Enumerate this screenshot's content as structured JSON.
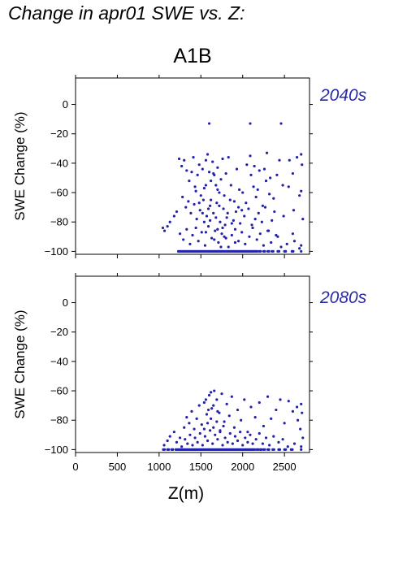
{
  "header": {
    "title": "Change in apr01 SWE vs. Z:",
    "scenario": "A1B"
  },
  "colors": {
    "points": "#2222aa",
    "period_label": "#2a2aa8",
    "axes": "#000000"
  },
  "chart_data": [
    {
      "type": "scatter",
      "panel_label": "2040s",
      "xlabel": "Z(m)",
      "ylabel": "SWE Change (%)",
      "xlim": [
        0,
        2800
      ],
      "ylim": [
        -102,
        18
      ],
      "yticks": [
        0,
        -20,
        -40,
        -60,
        -80,
        -100
      ],
      "xticks": [
        0,
        500,
        1000,
        1500,
        2000,
        2500
      ],
      "show_x_ticklabels": false,
      "grid": false,
      "points": [
        [
          1045,
          -84
        ],
        [
          1065,
          -86
        ],
        [
          1100,
          -83
        ],
        [
          1130,
          -80
        ],
        [
          1180,
          -76
        ],
        [
          1210,
          -73
        ],
        [
          1240,
          -37
        ],
        [
          1270,
          -42
        ],
        [
          1300,
          -38
        ],
        [
          1330,
          -45
        ],
        [
          1360,
          -52
        ],
        [
          1390,
          -46
        ],
        [
          1410,
          -36
        ],
        [
          1430,
          -56
        ],
        [
          1460,
          -48
        ],
        [
          1480,
          -41
        ],
        [
          1500,
          -62
        ],
        [
          1520,
          -44
        ],
        [
          1540,
          -57
        ],
        [
          1560,
          -38
        ],
        [
          1580,
          -34
        ],
        [
          1600,
          -46
        ],
        [
          1620,
          -52
        ],
        [
          1640,
          -39
        ],
        [
          1660,
          -48
        ],
        [
          1680,
          -55
        ],
        [
          1700,
          -43
        ],
        [
          1720,
          -60
        ],
        [
          1740,
          -51
        ],
        [
          1760,
          -37
        ],
        [
          1780,
          -62
        ],
        [
          1800,
          -47
        ],
        [
          1830,
          -36
        ],
        [
          1860,
          -55
        ],
        [
          1900,
          -66
        ],
        [
          1930,
          -44
        ],
        [
          1960,
          -58
        ],
        [
          1990,
          -72
        ],
        [
          2050,
          -41
        ],
        [
          2100,
          -48
        ],
        [
          2130,
          -56
        ],
        [
          2160,
          -63
        ],
        [
          2200,
          -45
        ],
        [
          2240,
          -69
        ],
        [
          2280,
          -52
        ],
        [
          2320,
          -61
        ],
        [
          1280,
          -63
        ],
        [
          1320,
          -70
        ],
        [
          1350,
          -66
        ],
        [
          1380,
          -74
        ],
        [
          1420,
          -68
        ],
        [
          1450,
          -78
        ],
        [
          1490,
          -72
        ],
        [
          1530,
          -65
        ],
        [
          1570,
          -76
        ],
        [
          1610,
          -69
        ],
        [
          1650,
          -74
        ],
        [
          1690,
          -67
        ],
        [
          1730,
          -80
        ],
        [
          1770,
          -71
        ],
        [
          1810,
          -77
        ],
        [
          1850,
          -65
        ],
        [
          1890,
          -79
        ],
        [
          1920,
          -73
        ],
        [
          1970,
          -81
        ],
        [
          2020,
          -76
        ],
        [
          2070,
          -71
        ],
        [
          2110,
          -82
        ],
        [
          2150,
          -78
        ],
        [
          2190,
          -74
        ],
        [
          2230,
          -80
        ],
        [
          2270,
          -70
        ],
        [
          2310,
          -86
        ],
        [
          2350,
          -79
        ],
        [
          2380,
          -73
        ],
        [
          2420,
          -90
        ],
        [
          1250,
          -88
        ],
        [
          1290,
          -92
        ],
        [
          1330,
          -85
        ],
        [
          1370,
          -95
        ],
        [
          1400,
          -89
        ],
        [
          1440,
          -84
        ],
        [
          1470,
          -93
        ],
        [
          1510,
          -87
        ],
        [
          1550,
          -96
        ],
        [
          1590,
          -83
        ],
        [
          1630,
          -91
        ],
        [
          1670,
          -86
        ],
        [
          1710,
          -94
        ],
        [
          1750,
          -88
        ],
        [
          1790,
          -82
        ],
        [
          1830,
          -97
        ],
        [
          1870,
          -89
        ],
        [
          1910,
          -85
        ],
        [
          1950,
          -93
        ],
        [
          1990,
          -87
        ],
        [
          2030,
          -95
        ],
        [
          2080,
          -90
        ],
        [
          2120,
          -84
        ],
        [
          2170,
          -92
        ],
        [
          2210,
          -88
        ],
        [
          2250,
          -96
        ],
        [
          2300,
          -86
        ],
        [
          2340,
          -94
        ],
        [
          2400,
          -89
        ],
        [
          2460,
          -97
        ],
        [
          2530,
          -95
        ],
        [
          2620,
          -93
        ],
        [
          2700,
          -96
        ],
        [
          1600,
          -13
        ],
        [
          2090,
          -13
        ],
        [
          2460,
          -13
        ],
        [
          1560,
          -55
        ],
        [
          1620,
          -65
        ],
        [
          1700,
          -58
        ],
        [
          1650,
          -47
        ],
        [
          1590,
          -71
        ],
        [
          1540,
          -80
        ],
        [
          1680,
          -77
        ],
        [
          1720,
          -69
        ],
        [
          1760,
          -84
        ],
        [
          1800,
          -91
        ],
        [
          2550,
          -56
        ],
        [
          2560,
          -38
        ],
        [
          2600,
          -47
        ],
        [
          2650,
          -36
        ],
        [
          2700,
          -34
        ],
        [
          2710,
          -41
        ],
        [
          2700,
          -59
        ],
        [
          2720,
          -78
        ],
        [
          2680,
          -62
        ],
        [
          2610,
          -72
        ],
        [
          2600,
          -88
        ],
        [
          2680,
          -98
        ],
        [
          1480,
          -67
        ],
        [
          1440,
          -59
        ],
        [
          1520,
          -74
        ],
        [
          1560,
          -87
        ],
        [
          1610,
          -79
        ],
        [
          1660,
          -92
        ],
        [
          1700,
          -85
        ],
        [
          1740,
          -97
        ],
        [
          1780,
          -90
        ],
        [
          1820,
          -74
        ],
        [
          1870,
          -81
        ],
        [
          1910,
          -94
        ],
        [
          1950,
          -70
        ],
        [
          2000,
          -60
        ],
        [
          2040,
          -67
        ],
        [
          2090,
          -35
        ],
        [
          2140,
          -42
        ],
        [
          2180,
          -58
        ],
        [
          2260,
          -44
        ],
        [
          2290,
          -33
        ],
        [
          2330,
          -50
        ],
        [
          2370,
          -64
        ],
        [
          2410,
          -48
        ],
        [
          2440,
          -38
        ],
        [
          2480,
          -55
        ],
        [
          2490,
          -76
        ]
      ],
      "floor_points": [
        1230,
        1260,
        1290,
        1320,
        1350,
        1380,
        1410,
        1440,
        1470,
        1500,
        1530,
        1560,
        1590,
        1620,
        1650,
        1680,
        1710,
        1740,
        1770,
        1800,
        1830,
        1860,
        1890,
        1920,
        1950,
        1980,
        2010,
        2040,
        2070,
        2100,
        2130,
        2160,
        2200,
        2250,
        2300,
        2350,
        2420,
        2500,
        2590,
        2700
      ]
    },
    {
      "type": "scatter",
      "panel_label": "2080s",
      "xlabel": "Z(m)",
      "ylabel": "SWE Change (%)",
      "xlim": [
        0,
        2800
      ],
      "ylim": [
        -102,
        18
      ],
      "yticks": [
        0,
        -20,
        -40,
        -60,
        -80,
        -100
      ],
      "xticks": [
        0,
        500,
        1000,
        1500,
        2000,
        2500
      ],
      "xticklabels": [
        "0",
        "500",
        "1000",
        "1500",
        "2000",
        "2500"
      ],
      "show_x_ticklabels": true,
      "grid": false,
      "points": [
        [
          1060,
          -97
        ],
        [
          1100,
          -94
        ],
        [
          1130,
          -91
        ],
        [
          1180,
          -88
        ],
        [
          1210,
          -95
        ],
        [
          1250,
          -92
        ],
        [
          1300,
          -85
        ],
        [
          1330,
          -78
        ],
        [
          1360,
          -82
        ],
        [
          1390,
          -74
        ],
        [
          1420,
          -86
        ],
        [
          1450,
          -79
        ],
        [
          1480,
          -70
        ],
        [
          1510,
          -83
        ],
        [
          1540,
          -68
        ],
        [
          1570,
          -76
        ],
        [
          1600,
          -63
        ],
        [
          1630,
          -72
        ],
        [
          1660,
          -60
        ],
        [
          1690,
          -66
        ],
        [
          1720,
          -75
        ],
        [
          1750,
          -62
        ],
        [
          1780,
          -81
        ],
        [
          1810,
          -69
        ],
        [
          1840,
          -77
        ],
        [
          1870,
          -64
        ],
        [
          1900,
          -85
        ],
        [
          1940,
          -73
        ],
        [
          1980,
          -80
        ],
        [
          2020,
          -66
        ],
        [
          2060,
          -88
        ],
        [
          2100,
          -71
        ],
        [
          2150,
          -78
        ],
        [
          2200,
          -68
        ],
        [
          2250,
          -84
        ],
        [
          2300,
          -64
        ],
        [
          2340,
          -79
        ],
        [
          2400,
          -73
        ],
        [
          2450,
          -66
        ],
        [
          2500,
          -82
        ],
        [
          1270,
          -98
        ],
        [
          1310,
          -93
        ],
        [
          1340,
          -96
        ],
        [
          1370,
          -90
        ],
        [
          1400,
          -97
        ],
        [
          1430,
          -92
        ],
        [
          1460,
          -95
        ],
        [
          1490,
          -89
        ],
        [
          1520,
          -97
        ],
        [
          1550,
          -91
        ],
        [
          1580,
          -94
        ],
        [
          1610,
          -87
        ],
        [
          1640,
          -96
        ],
        [
          1670,
          -90
        ],
        [
          1700,
          -93
        ],
        [
          1730,
          -88
        ],
        [
          1760,
          -97
        ],
        [
          1790,
          -92
        ],
        [
          1820,
          -95
        ],
        [
          1850,
          -89
        ],
        [
          1880,
          -96
        ],
        [
          1910,
          -91
        ],
        [
          1940,
          -94
        ],
        [
          1970,
          -88
        ],
        [
          2000,
          -97
        ],
        [
          2030,
          -92
        ],
        [
          2060,
          -95
        ],
        [
          2090,
          -90
        ],
        [
          2120,
          -96
        ],
        [
          2160,
          -93
        ],
        [
          2200,
          -89
        ],
        [
          2240,
          -96
        ],
        [
          2280,
          -92
        ],
        [
          2320,
          -97
        ],
        [
          2370,
          -91
        ],
        [
          2430,
          -95
        ],
        [
          2480,
          -93
        ],
        [
          2540,
          -98
        ],
        [
          2620,
          -96
        ],
        [
          2700,
          -98
        ],
        [
          1540,
          -86
        ],
        [
          1580,
          -82
        ],
        [
          1620,
          -79
        ],
        [
          1650,
          -85
        ],
        [
          1690,
          -81
        ],
        [
          1730,
          -87
        ],
        [
          1770,
          -84
        ],
        [
          1650,
          -70
        ],
        [
          1700,
          -74
        ],
        [
          1590,
          -73
        ],
        [
          1560,
          -66
        ],
        [
          1620,
          -61
        ],
        [
          2550,
          -67
        ],
        [
          2600,
          -74
        ],
        [
          2650,
          -71
        ],
        [
          2700,
          -69
        ],
        [
          2710,
          -75
        ],
        [
          2690,
          -86
        ],
        [
          2720,
          -92
        ],
        [
          2660,
          -80
        ]
      ],
      "floor_points": [
        1050,
        1100,
        1150,
        1200,
        1230,
        1260,
        1290,
        1320,
        1350,
        1380,
        1410,
        1440,
        1470,
        1500,
        1530,
        1560,
        1590,
        1620,
        1650,
        1680,
        1710,
        1740,
        1770,
        1800,
        1830,
        1860,
        1890,
        1920,
        1950,
        1980,
        2010,
        2040,
        2070,
        2100,
        2130,
        2170,
        2210,
        2250,
        2300,
        2360,
        2430,
        2500,
        2580,
        2700
      ]
    }
  ]
}
